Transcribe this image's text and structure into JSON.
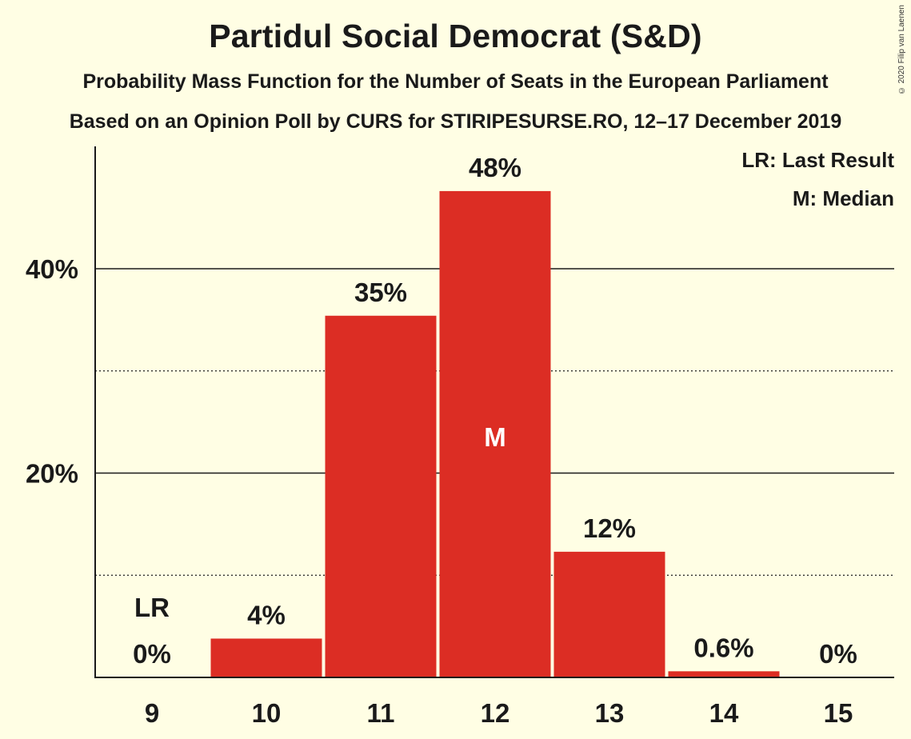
{
  "title": "Partidul Social Democrat (S&D)",
  "subtitle": "Probability Mass Function for the Number of Seats in the European Parliament",
  "source_line": "Based on an Opinion Poll by CURS for STIRIPESURSE.RO, 12–17 December 2019",
  "copyright": "© 2020 Filip van Laenen",
  "legend": {
    "last_result": "LR: Last Result",
    "median": "M: Median"
  },
  "colors": {
    "bar": "#DC2D24",
    "background": "#FFFEE4",
    "axis": "#1a1a1a"
  },
  "chart_data": {
    "type": "bar",
    "categories": [
      "9",
      "10",
      "11",
      "12",
      "13",
      "14",
      "15"
    ],
    "values": [
      0,
      3.8,
      35.4,
      47.6,
      12.3,
      0.6,
      0
    ],
    "data_labels": [
      "0%",
      "4%",
      "35%",
      "48%",
      "12%",
      "0.6%",
      "0%"
    ],
    "ylim": [
      0,
      52
    ],
    "y_ticks": [
      {
        "value": 20,
        "label": "20%"
      },
      {
        "value": 40,
        "label": "40%"
      }
    ],
    "minor_gridlines": [
      10,
      30
    ],
    "last_result_category": "9",
    "last_result_marker": "LR",
    "median_category": "12",
    "median_marker": "M",
    "grid": true,
    "legend_position": "top-right"
  }
}
